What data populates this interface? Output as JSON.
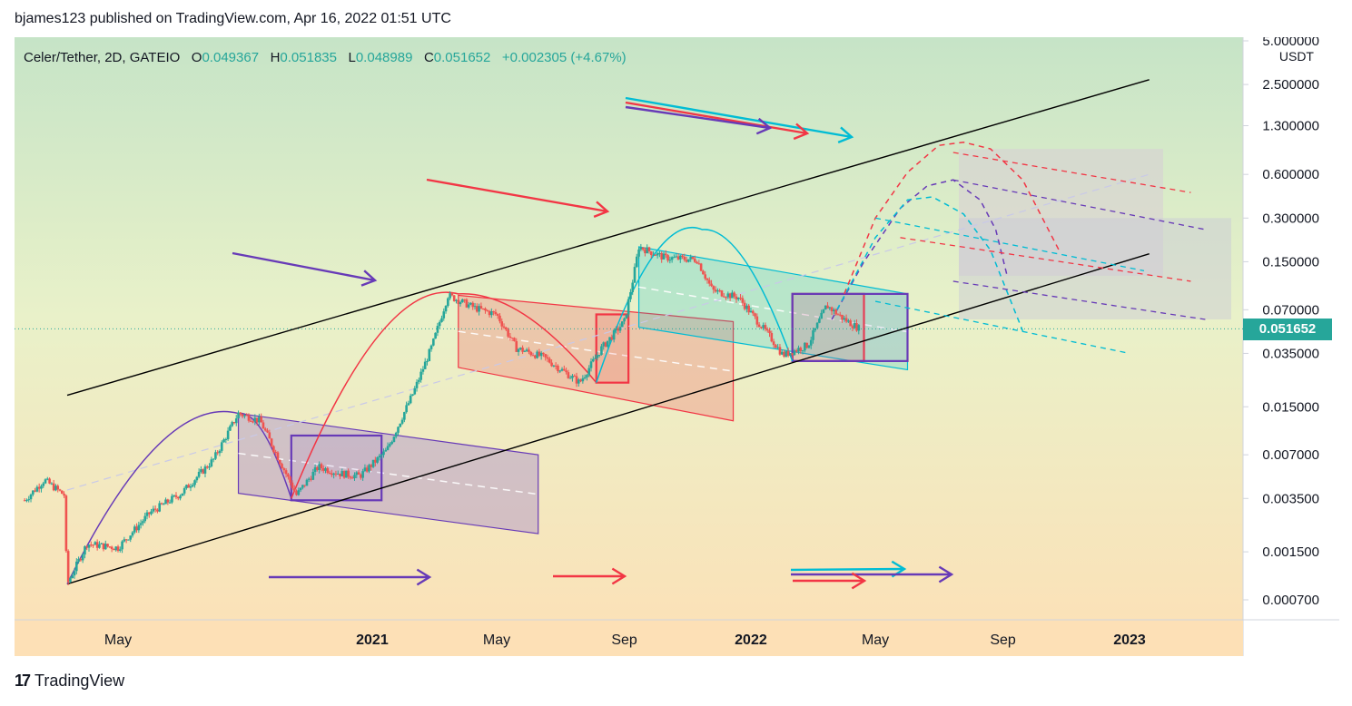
{
  "header": {
    "published_text": "bjames123 published on TradingView.com, Apr 16, 2022 01:51 UTC"
  },
  "legend": {
    "symbol": "Celer/Tether, 2D, GATEIO",
    "o_label": "O",
    "o_value": "0.049367",
    "h_label": "H",
    "h_value": "0.051835",
    "l_label": "L",
    "l_value": "0.048989",
    "c_label": "C",
    "c_value": "0.051652",
    "change": "+0.002305 (+4.67%)"
  },
  "footer": {
    "brand": "TradingView",
    "logo_icon": "tradingview-logo-icon"
  },
  "colors": {
    "up": "#26a69a",
    "down": "#ef5350",
    "purple": "#673ab7",
    "red": "#f23645",
    "cyan": "#00bcd4",
    "black": "#000000"
  },
  "chart_data": {
    "type": "candlestick",
    "symbol": "Celer/Tether",
    "interval": "2D",
    "exchange": "GATEIO",
    "currency": "USDT",
    "y_scale": "log",
    "ylim": [
      0.0005,
      6.0
    ],
    "y_ticks": [
      "5.000000",
      "2.500000",
      "1.300000",
      "0.600000",
      "0.300000",
      "0.150000",
      "0.070000",
      "0.035000",
      "0.015000",
      "0.007000",
      "0.003500",
      "0.001500",
      "0.000700"
    ],
    "y_tick_values": [
      5.0,
      2.5,
      1.3,
      0.6,
      0.3,
      0.15,
      0.07,
      0.035,
      0.015,
      0.007,
      0.0035,
      0.0015,
      0.0007
    ],
    "x_ticks": [
      "May",
      "2021",
      "May",
      "Sep",
      "2022",
      "May",
      "Sep",
      "2023"
    ],
    "x_tick_bold": [
      false,
      true,
      false,
      false,
      true,
      false,
      false,
      true
    ],
    "last_price": "0.051652",
    "last_price_value": 0.051652,
    "price_path": [
      [
        "2020-02-01",
        0.0034
      ],
      [
        "2020-02-20",
        0.0047
      ],
      [
        "2020-03-10",
        0.0037
      ],
      [
        "2020-03-13",
        0.0009
      ],
      [
        "2020-04-01",
        0.0017
      ],
      [
        "2020-05-01",
        0.0016
      ],
      [
        "2020-06-01",
        0.0028
      ],
      [
        "2020-07-01",
        0.0038
      ],
      [
        "2020-08-01",
        0.0065
      ],
      [
        "2020-08-25",
        0.0135
      ],
      [
        "2020-09-15",
        0.012
      ],
      [
        "2020-10-01",
        0.007
      ],
      [
        "2020-10-20",
        0.0037
      ],
      [
        "2020-11-10",
        0.0058
      ],
      [
        "2020-12-01",
        0.0052
      ],
      [
        "2020-12-20",
        0.005
      ],
      [
        "2021-01-15",
        0.0075
      ],
      [
        "2021-02-10",
        0.019
      ],
      [
        "2021-02-28",
        0.04
      ],
      [
        "2021-03-15",
        0.088
      ],
      [
        "2021-04-10",
        0.072
      ],
      [
        "2021-05-01",
        0.065
      ],
      [
        "2021-05-20",
        0.038
      ],
      [
        "2021-06-15",
        0.033
      ],
      [
        "2021-07-20",
        0.022
      ],
      [
        "2021-08-10",
        0.038
      ],
      [
        "2021-09-01",
        0.058
      ],
      [
        "2021-09-10",
        0.12
      ],
      [
        "2021-09-15",
        0.19
      ],
      [
        "2021-10-10",
        0.16
      ],
      [
        "2021-11-10",
        0.155
      ],
      [
        "2021-11-25",
        0.095
      ],
      [
        "2021-12-20",
        0.085
      ],
      [
        "2022-01-20",
        0.045
      ],
      [
        "2022-02-01",
        0.034
      ],
      [
        "2022-02-25",
        0.04
      ],
      [
        "2022-03-15",
        0.075
      ],
      [
        "2022-04-01",
        0.06
      ],
      [
        "2022-04-16",
        0.0517
      ]
    ],
    "drawings": {
      "channel_black": {
        "upper": [
          [
            "2020-03-13",
            0.018
          ],
          [
            "2023-01-20",
            2.7
          ]
        ],
        "lower": [
          [
            "2020-03-13",
            0.0009
          ],
          [
            "2023-01-20",
            0.17
          ]
        ]
      },
      "arcs": [
        {
          "color": "purple",
          "from": [
            "2020-03-13",
            0.0009
          ],
          "peak": [
            "2020-08-25",
            0.0135
          ],
          "to": [
            "2020-10-15",
            0.0035
          ]
        },
        {
          "color": "red",
          "from": [
            "2020-10-15",
            0.0035
          ],
          "peak": [
            "2021-03-25",
            0.09
          ],
          "to": [
            "2021-08-05",
            0.022
          ]
        },
        {
          "color": "cyan",
          "from": [
            "2021-08-05",
            0.022
          ],
          "peak": [
            "2021-11-15",
            0.25
          ],
          "to": [
            "2022-02-10",
            0.031
          ]
        }
      ],
      "down_channels": [
        {
          "color": "purple",
          "start": "2020-08-25",
          "end": "2021-06-10",
          "top": [
            0.0135,
            0.007
          ],
          "bottom": [
            0.0038,
            0.002
          ]
        },
        {
          "color": "red",
          "start": "2021-03-25",
          "end": "2021-12-15",
          "top": [
            0.088,
            0.058
          ],
          "bottom": [
            0.028,
            0.012
          ]
        },
        {
          "color": "cyan",
          "start": "2021-09-15",
          "end": "2022-06-01",
          "top": [
            0.19,
            0.09
          ],
          "bottom": [
            0.053,
            0.027
          ]
        }
      ],
      "boxes": [
        {
          "color": "purple",
          "from": [
            "2020-10-15",
            0.0034
          ],
          "to": [
            "2021-01-10",
            0.0095
          ]
        },
        {
          "color": "red",
          "from": [
            "2021-08-05",
            0.022
          ],
          "to": [
            "2021-09-05",
            0.065
          ]
        },
        {
          "color": "red",
          "from": [
            "2022-02-10",
            0.031
          ],
          "to": [
            "2022-04-20",
            0.09
          ]
        },
        {
          "color": "purple",
          "from": [
            "2022-02-10",
            0.031
          ],
          "to": [
            "2022-06-01",
            0.09
          ]
        }
      ]
    }
  }
}
